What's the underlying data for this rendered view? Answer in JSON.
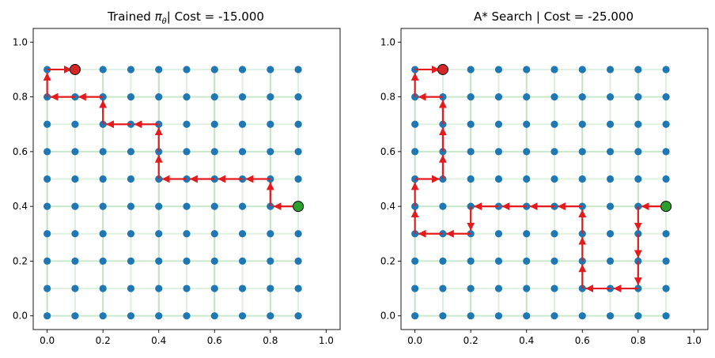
{
  "chart_data": [
    {
      "type": "scatter",
      "title": "Trained πθ| Cost = -15.000",
      "title_main": "Trained ",
      "title_pi": "π",
      "title_sub": "θ",
      "title_rest": "| Cost = -15.000",
      "xlim": [
        -0.05,
        1.05
      ],
      "ylim": [
        -0.05,
        1.05
      ],
      "xticks": [
        "0.0",
        "0.2",
        "0.4",
        "0.6",
        "0.8",
        "1.0"
      ],
      "yticks": [
        "0.0",
        "0.2",
        "0.4",
        "0.6",
        "0.8",
        "1.0"
      ],
      "grid_nodes": {
        "x": [
          0,
          0.1,
          0.2,
          0.3,
          0.4,
          0.5,
          0.6,
          0.7,
          0.8,
          0.9
        ],
        "y": [
          0,
          0.1,
          0.2,
          0.3,
          0.4,
          0.5,
          0.6,
          0.7,
          0.8,
          0.9
        ]
      },
      "start": [
        0.9,
        0.4
      ],
      "goal": [
        0.1,
        0.9
      ],
      "path": [
        [
          0.9,
          0.4
        ],
        [
          0.8,
          0.4
        ],
        [
          0.8,
          0.5
        ],
        [
          0.7,
          0.5
        ],
        [
          0.6,
          0.5
        ],
        [
          0.5,
          0.5
        ],
        [
          0.4,
          0.5
        ],
        [
          0.4,
          0.6
        ],
        [
          0.4,
          0.7
        ],
        [
          0.3,
          0.7
        ],
        [
          0.2,
          0.7
        ],
        [
          0.2,
          0.8
        ],
        [
          0.1,
          0.8
        ],
        [
          0.0,
          0.8
        ],
        [
          0.0,
          0.9
        ],
        [
          0.1,
          0.9
        ]
      ],
      "colors": {
        "node": "#1f77b4",
        "edge": "#4caf50",
        "path": "#e41a1c",
        "start": "#2ca02c",
        "goal": "#d62728"
      }
    },
    {
      "type": "scatter",
      "title": "A* Search | Cost = -25.000",
      "xlim": [
        -0.05,
        1.05
      ],
      "ylim": [
        -0.05,
        1.05
      ],
      "xticks": [
        "0.0",
        "0.2",
        "0.4",
        "0.6",
        "0.8",
        "1.0"
      ],
      "yticks": [
        "0.0",
        "0.2",
        "0.4",
        "0.6",
        "0.8",
        "1.0"
      ],
      "grid_nodes": {
        "x": [
          0,
          0.1,
          0.2,
          0.3,
          0.4,
          0.5,
          0.6,
          0.7,
          0.8,
          0.9
        ],
        "y": [
          0,
          0.1,
          0.2,
          0.3,
          0.4,
          0.5,
          0.6,
          0.7,
          0.8,
          0.9
        ]
      },
      "start": [
        0.9,
        0.4
      ],
      "goal": [
        0.1,
        0.9
      ],
      "path": [
        [
          0.9,
          0.4
        ],
        [
          0.8,
          0.4
        ],
        [
          0.8,
          0.3
        ],
        [
          0.8,
          0.2
        ],
        [
          0.8,
          0.1
        ],
        [
          0.7,
          0.1
        ],
        [
          0.6,
          0.1
        ],
        [
          0.6,
          0.2
        ],
        [
          0.6,
          0.3
        ],
        [
          0.6,
          0.4
        ],
        [
          0.5,
          0.4
        ],
        [
          0.4,
          0.4
        ],
        [
          0.3,
          0.4
        ],
        [
          0.2,
          0.4
        ],
        [
          0.2,
          0.3
        ],
        [
          0.1,
          0.3
        ],
        [
          0.0,
          0.3
        ],
        [
          0.0,
          0.4
        ],
        [
          0.0,
          0.5
        ],
        [
          0.1,
          0.5
        ],
        [
          0.1,
          0.6
        ],
        [
          0.1,
          0.7
        ],
        [
          0.1,
          0.8
        ],
        [
          0.0,
          0.8
        ],
        [
          0.0,
          0.9
        ],
        [
          0.1,
          0.9
        ]
      ],
      "colors": {
        "node": "#1f77b4",
        "edge": "#4caf50",
        "path": "#e41a1c",
        "start": "#2ca02c",
        "goal": "#d62728"
      }
    }
  ]
}
